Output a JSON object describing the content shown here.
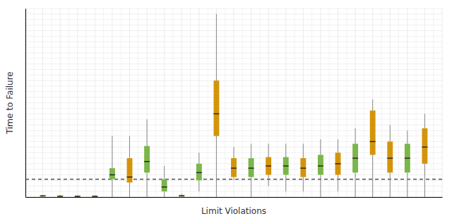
{
  "chart_data": {
    "type": "box",
    "x_label": "Limit Violations",
    "y_label": "Time to Failure",
    "x": [
      1,
      2,
      3,
      4,
      5,
      6,
      7,
      8,
      9,
      10,
      11,
      12,
      13,
      14,
      15,
      16,
      17,
      18,
      19,
      20,
      21,
      22,
      23
    ],
    "q1": [
      0.5,
      0.3,
      0.3,
      0.3,
      16,
      13,
      22,
      5,
      0.5,
      15,
      55,
      18,
      18,
      20,
      20,
      18,
      20,
      20,
      22,
      38,
      22,
      22,
      30
    ],
    "median": [
      1.0,
      0.7,
      0.6,
      0.6,
      20,
      18,
      32,
      9,
      1.0,
      22,
      75,
      26,
      26,
      28,
      28,
      26,
      28,
      30,
      35,
      50,
      35,
      35,
      45
    ],
    "q3": [
      1.5,
      1.2,
      1.0,
      1.0,
      26,
      35,
      46,
      16,
      1.8,
      30,
      105,
      35,
      35,
      36,
      36,
      35,
      38,
      40,
      48,
      78,
      50,
      48,
      62
    ],
    "whislo": [
      0.2,
      0.1,
      0.1,
      0.1,
      0,
      0,
      0,
      0,
      0.1,
      5,
      0,
      15,
      0,
      10,
      5,
      5,
      0,
      5,
      0,
      0,
      0,
      0,
      0
    ],
    "whishi": [
      2.0,
      1.8,
      1.5,
      1.5,
      55,
      55,
      70,
      28,
      3.0,
      40,
      165,
      45,
      48,
      48,
      48,
      48,
      52,
      52,
      62,
      88,
      65,
      60,
      75
    ],
    "colors": [
      "#D4940A",
      "#D4940A",
      "#D4940A",
      "#D4940A",
      "#7AB648",
      "#D4940A",
      "#7AB648",
      "#7AB648",
      "#D4940A",
      "#7AB648",
      "#D4940A",
      "#D4940A",
      "#7AB648",
      "#D4940A",
      "#7AB648",
      "#D4940A",
      "#7AB648",
      "#D4940A",
      "#7AB648",
      "#D4940A",
      "#D4940A",
      "#7AB648",
      "#D4940A"
    ],
    "reference_line": 16,
    "xlim": [
      0,
      24
    ],
    "ylim": [
      0,
      170
    ],
    "xticks": [
      0,
      0.5,
      1,
      1.5,
      2,
      2.5,
      3,
      3.5,
      4,
      4.5,
      5,
      5.5,
      6,
      6.5,
      7,
      7.5,
      8,
      8.5,
      9,
      9.5,
      10,
      10.5,
      11,
      11.5,
      12,
      12.5,
      13,
      13.5,
      14,
      14.5,
      15,
      15.5,
      16,
      16.5,
      17,
      17.5,
      18,
      18.5,
      19,
      19.5,
      20,
      20.5,
      21,
      21.5,
      22,
      22.5,
      23,
      23.5,
      24
    ],
    "yticks": [
      0,
      5,
      10,
      15,
      20,
      25,
      30,
      35,
      40,
      45,
      50,
      55,
      60,
      65,
      70,
      75,
      80,
      85,
      90,
      95,
      100,
      105,
      110,
      115,
      120,
      125,
      130,
      135,
      140,
      145,
      150,
      155,
      160,
      165,
      170
    ],
    "grid": true,
    "tick_labels": false
  }
}
